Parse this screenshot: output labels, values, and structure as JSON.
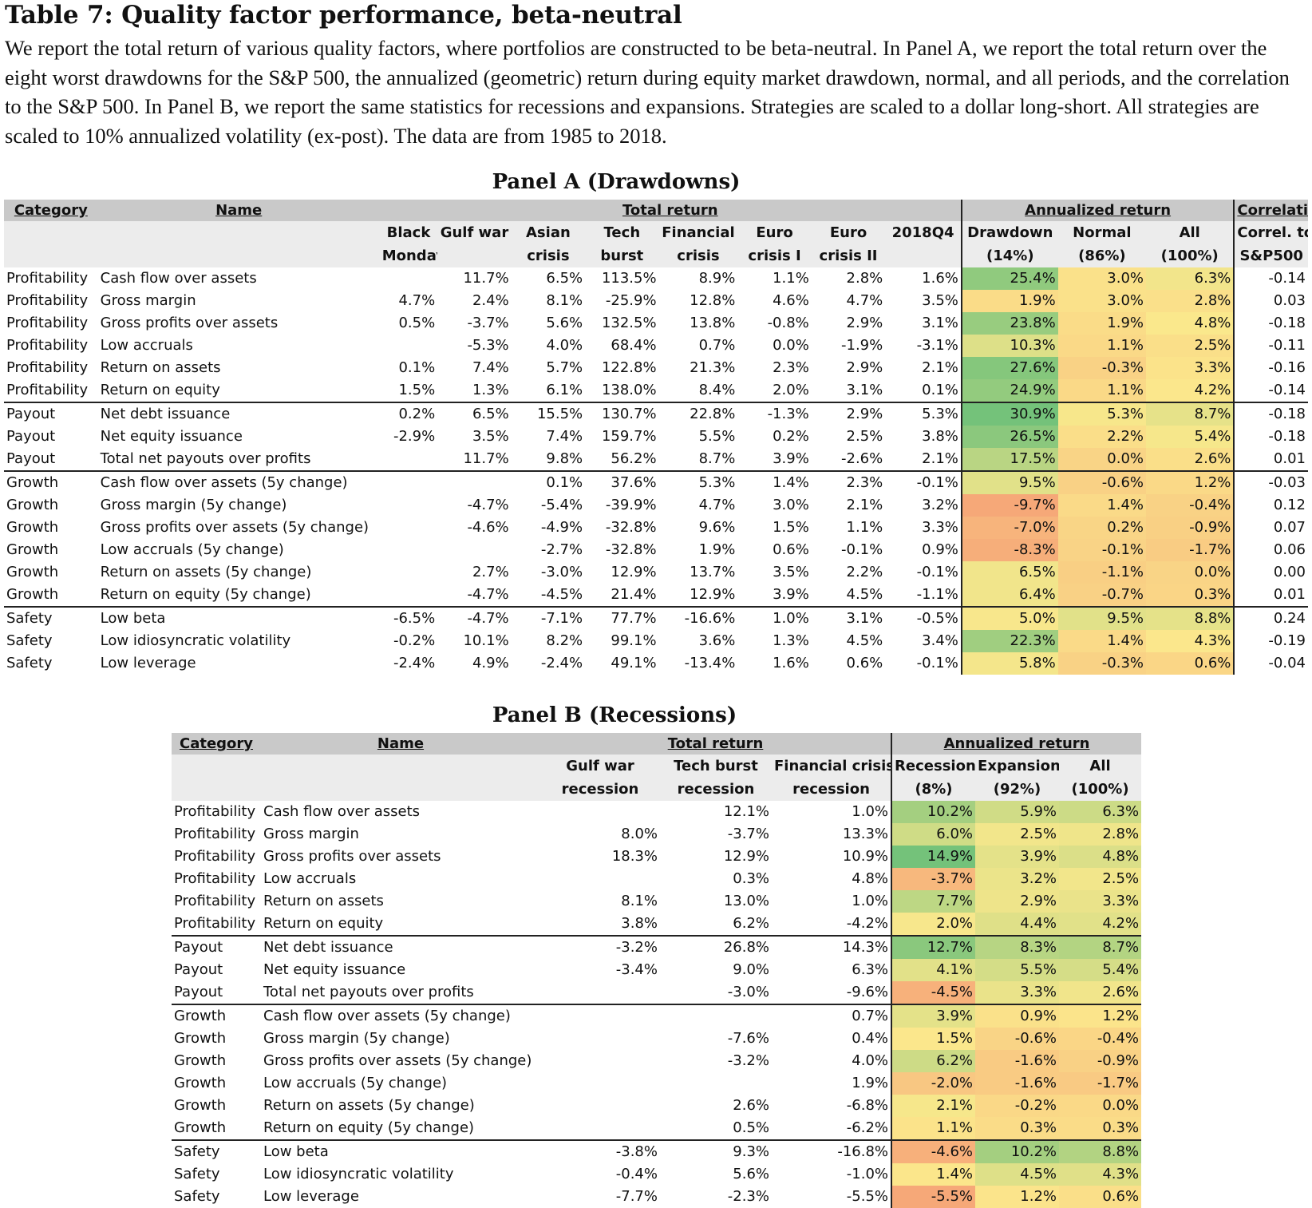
{
  "title": "Table 7: Quality factor performance, beta-neutral",
  "caption": "We report the total return of various quality factors, where portfolios are constructed to be beta-neutral. In Panel A, we report the total return over the eight worst drawdowns for the S&P 500, the annualized (geometric) return during equity market drawdown, normal, and all periods, and the correlation to the S&P 500. In Panel B, we report the same statistics for recessions and expansions. Strategies are scaled to a dollar long-short. All strategies are scaled to 10% annualized volatility (ex-post). The data are from 1985 to 2018.",
  "colors": {
    "group_header": "#c9c9c9",
    "sub_header": "#ececec",
    "heat_low": "#f6a878",
    "heat_mid": "#fbe88c",
    "heat_high": "#74c27a"
  },
  "panelA": {
    "title": "Panel A (Drawdowns)",
    "group_headers": {
      "category": "Category",
      "name": "Name",
      "total_return": "Total return",
      "annualized_return": "Annualized return",
      "correlation": "Correlation"
    },
    "columns": [
      [
        "Black",
        "Monday"
      ],
      [
        "Gulf war",
        ""
      ],
      [
        "Asian",
        "crisis"
      ],
      [
        "Tech",
        "burst"
      ],
      [
        "Financial",
        "crisis"
      ],
      [
        "Euro",
        "crisis I"
      ],
      [
        "Euro",
        "crisis II"
      ],
      [
        "2018Q4",
        ""
      ],
      [
        "Drawdown",
        "(14%)"
      ],
      [
        "Normal",
        "(86%)"
      ],
      [
        "All",
        "(100%)"
      ],
      [
        "Correl. to",
        "S&P500"
      ]
    ],
    "rows": [
      [
        "Profitability",
        "Cash flow over assets",
        "",
        "11.7%",
        "6.5%",
        "113.5%",
        "8.9%",
        "1.1%",
        "2.8%",
        "1.6%",
        "25.4%",
        "3.0%",
        "6.3%",
        "-0.14"
      ],
      [
        "Profitability",
        "Gross margin",
        "4.7%",
        "2.4%",
        "8.1%",
        "-25.9%",
        "12.8%",
        "4.6%",
        "4.7%",
        "3.5%",
        "1.9%",
        "3.0%",
        "2.8%",
        "0.03"
      ],
      [
        "Profitability",
        "Gross profits over assets",
        "0.5%",
        "-3.7%",
        "5.6%",
        "132.5%",
        "13.8%",
        "-0.8%",
        "2.9%",
        "3.1%",
        "23.8%",
        "1.9%",
        "4.8%",
        "-0.18"
      ],
      [
        "Profitability",
        "Low accruals",
        "",
        "-5.3%",
        "4.0%",
        "68.4%",
        "0.7%",
        "0.0%",
        "-1.9%",
        "-3.1%",
        "10.3%",
        "1.1%",
        "2.5%",
        "-0.11"
      ],
      [
        "Profitability",
        "Return on assets",
        "0.1%",
        "7.4%",
        "5.7%",
        "122.8%",
        "21.3%",
        "2.3%",
        "2.9%",
        "2.1%",
        "27.6%",
        "-0.3%",
        "3.3%",
        "-0.16"
      ],
      [
        "Profitability",
        "Return on equity",
        "1.5%",
        "1.3%",
        "6.1%",
        "138.0%",
        "8.4%",
        "2.0%",
        "3.1%",
        "0.1%",
        "24.9%",
        "1.1%",
        "4.2%",
        "-0.14"
      ],
      [
        "Payout",
        "Net debt issuance",
        "0.2%",
        "6.5%",
        "15.5%",
        "130.7%",
        "22.8%",
        "-1.3%",
        "2.9%",
        "5.3%",
        "30.9%",
        "5.3%",
        "8.7%",
        "-0.18"
      ],
      [
        "Payout",
        "Net equity issuance",
        "-2.9%",
        "3.5%",
        "7.4%",
        "159.7%",
        "5.5%",
        "0.2%",
        "2.5%",
        "3.8%",
        "26.5%",
        "2.2%",
        "5.4%",
        "-0.18"
      ],
      [
        "Payout",
        "Total net payouts over profits",
        "",
        "11.7%",
        "9.8%",
        "56.2%",
        "8.7%",
        "3.9%",
        "-2.6%",
        "2.1%",
        "17.5%",
        "0.0%",
        "2.6%",
        "0.01"
      ],
      [
        "Growth",
        "Cash flow over assets (5y change)",
        "",
        "",
        "0.1%",
        "37.6%",
        "5.3%",
        "1.4%",
        "2.3%",
        "-0.1%",
        "9.5%",
        "-0.6%",
        "1.2%",
        "-0.03"
      ],
      [
        "Growth",
        "Gross margin (5y change)",
        "",
        "-4.7%",
        "-5.4%",
        "-39.9%",
        "4.7%",
        "3.0%",
        "2.1%",
        "3.2%",
        "-9.7%",
        "1.4%",
        "-0.4%",
        "0.12"
      ],
      [
        "Growth",
        "Gross profits over assets (5y change)",
        "",
        "-4.6%",
        "-4.9%",
        "-32.8%",
        "9.6%",
        "1.5%",
        "1.1%",
        "3.3%",
        "-7.0%",
        "0.2%",
        "-0.9%",
        "0.07"
      ],
      [
        "Growth",
        "Low accruals (5y change)",
        "",
        "",
        "-2.7%",
        "-32.8%",
        "1.9%",
        "0.6%",
        "-0.1%",
        "0.9%",
        "-8.3%",
        "-0.1%",
        "-1.7%",
        "0.06"
      ],
      [
        "Growth",
        "Return on assets (5y change)",
        "",
        "2.7%",
        "-3.0%",
        "12.9%",
        "13.7%",
        "3.5%",
        "2.2%",
        "-0.1%",
        "6.5%",
        "-1.1%",
        "0.0%",
        "0.00"
      ],
      [
        "Growth",
        "Return on equity (5y change)",
        "",
        "-4.7%",
        "-4.5%",
        "21.4%",
        "12.9%",
        "3.9%",
        "4.5%",
        "-1.1%",
        "6.4%",
        "-0.7%",
        "0.3%",
        "0.01"
      ],
      [
        "Safety",
        "Low beta",
        "-6.5%",
        "-4.7%",
        "-7.1%",
        "77.7%",
        "-16.6%",
        "1.0%",
        "3.1%",
        "-0.5%",
        "5.0%",
        "9.5%",
        "8.8%",
        "0.24"
      ],
      [
        "Safety",
        "Low idiosyncratic volatility",
        "-0.2%",
        "10.1%",
        "8.2%",
        "99.1%",
        "3.6%",
        "1.3%",
        "4.5%",
        "3.4%",
        "22.3%",
        "1.4%",
        "4.3%",
        "-0.19"
      ],
      [
        "Safety",
        "Low leverage",
        "-2.4%",
        "4.9%",
        "-2.4%",
        "49.1%",
        "-13.4%",
        "1.6%",
        "0.6%",
        "-0.1%",
        "5.8%",
        "-0.3%",
        "0.6%",
        "-0.04"
      ]
    ]
  },
  "panelB": {
    "title": "Panel B (Recessions)",
    "group_headers": {
      "category": "Category",
      "name": "Name",
      "total_return": "Total return",
      "annualized_return": "Annualized return"
    },
    "columns": [
      [
        "Gulf war",
        "recession"
      ],
      [
        "Tech burst",
        "recession"
      ],
      [
        "Financial crisis",
        "recession"
      ],
      [
        "Recession",
        "(8%)"
      ],
      [
        "Expansion",
        "(92%)"
      ],
      [
        "All",
        "(100%)"
      ]
    ],
    "rows": [
      [
        "Profitability",
        "Cash flow over assets",
        "",
        "12.1%",
        "1.0%",
        "10.2%",
        "5.9%",
        "6.3%"
      ],
      [
        "Profitability",
        "Gross margin",
        "8.0%",
        "-3.7%",
        "13.3%",
        "6.0%",
        "2.5%",
        "2.8%"
      ],
      [
        "Profitability",
        "Gross profits over assets",
        "18.3%",
        "12.9%",
        "10.9%",
        "14.9%",
        "3.9%",
        "4.8%"
      ],
      [
        "Profitability",
        "Low accruals",
        "",
        "0.3%",
        "4.8%",
        "-3.7%",
        "3.2%",
        "2.5%"
      ],
      [
        "Profitability",
        "Return on assets",
        "8.1%",
        "13.0%",
        "1.0%",
        "7.7%",
        "2.9%",
        "3.3%"
      ],
      [
        "Profitability",
        "Return on equity",
        "3.8%",
        "6.2%",
        "-4.2%",
        "2.0%",
        "4.4%",
        "4.2%"
      ],
      [
        "Payout",
        "Net debt issuance",
        "-3.2%",
        "26.8%",
        "14.3%",
        "12.7%",
        "8.3%",
        "8.7%"
      ],
      [
        "Payout",
        "Net equity issuance",
        "-3.4%",
        "9.0%",
        "6.3%",
        "4.1%",
        "5.5%",
        "5.4%"
      ],
      [
        "Payout",
        "Total net payouts over profits",
        "",
        "-3.0%",
        "-9.6%",
        "-4.5%",
        "3.3%",
        "2.6%"
      ],
      [
        "Growth",
        "Cash flow over assets (5y change)",
        "",
        "",
        "0.7%",
        "3.9%",
        "0.9%",
        "1.2%"
      ],
      [
        "Growth",
        "Gross margin (5y change)",
        "",
        "-7.6%",
        "0.4%",
        "1.5%",
        "-0.6%",
        "-0.4%"
      ],
      [
        "Growth",
        "Gross profits over assets (5y change)",
        "",
        "-3.2%",
        "4.0%",
        "6.2%",
        "-1.6%",
        "-0.9%"
      ],
      [
        "Growth",
        "Low accruals (5y change)",
        "",
        "",
        "1.9%",
        "-2.0%",
        "-1.6%",
        "-1.7%"
      ],
      [
        "Growth",
        "Return on assets (5y change)",
        "",
        "2.6%",
        "-6.8%",
        "2.1%",
        "-0.2%",
        "0.0%"
      ],
      [
        "Growth",
        "Return on equity (5y change)",
        "",
        "0.5%",
        "-6.2%",
        "1.1%",
        "0.3%",
        "0.3%"
      ],
      [
        "Safety",
        "Low beta",
        "-3.8%",
        "9.3%",
        "-16.8%",
        "-4.6%",
        "10.2%",
        "8.8%"
      ],
      [
        "Safety",
        "Low idiosyncratic volatility",
        "-0.4%",
        "5.6%",
        "-1.0%",
        "1.4%",
        "4.5%",
        "4.3%"
      ],
      [
        "Safety",
        "Low leverage",
        "-7.7%",
        "-2.3%",
        "-5.5%",
        "-5.5%",
        "1.2%",
        "0.6%"
      ]
    ]
  }
}
